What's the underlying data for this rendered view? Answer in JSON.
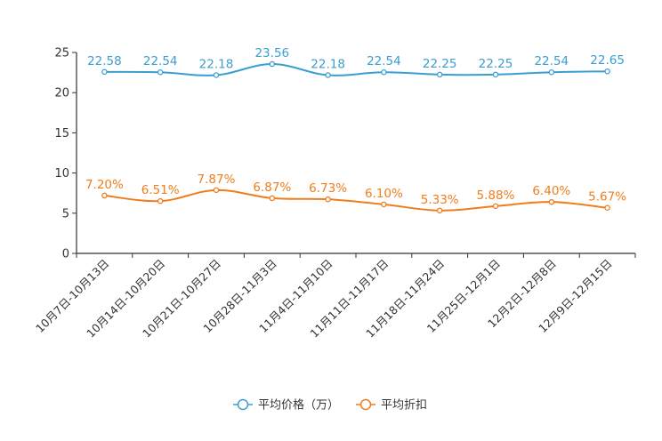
{
  "chart_data": {
    "type": "line",
    "title": "",
    "xlabel": "",
    "ylabel": "",
    "ylim": [
      0,
      25
    ],
    "yticks": [
      0,
      5,
      10,
      15,
      20,
      25
    ],
    "grid": false,
    "legend_position": "bottom-center",
    "categories": [
      "10月7日-10月13日",
      "10月14日-10月20日",
      "10月21日-10月27日",
      "10月28日-11月3日",
      "11月4日-11月10日",
      "11月11日-11月17日",
      "11月18日-11月24日",
      "11月25日-12月1日",
      "12月2日-12月8日",
      "12月9日-12月15日"
    ],
    "series": [
      {
        "name": "平均价格（万）",
        "color": "#3a9ed0",
        "values": [
          22.58,
          22.54,
          22.18,
          23.56,
          22.18,
          22.54,
          22.25,
          22.25,
          22.54,
          22.65
        ],
        "labels": [
          "22.58",
          "22.54",
          "22.18",
          "23.56",
          "22.18",
          "22.54",
          "22.25",
          "22.25",
          "22.54",
          "22.65"
        ]
      },
      {
        "name": "平均折扣",
        "color": "#f07d1c",
        "values": [
          7.2,
          6.51,
          7.87,
          6.87,
          6.73,
          6.1,
          5.33,
          5.88,
          6.4,
          5.67
        ],
        "labels": [
          "7.20%",
          "6.51%",
          "7.87%",
          "6.87%",
          "6.73%",
          "6.10%",
          "5.33%",
          "5.88%",
          "6.40%",
          "5.67%"
        ]
      }
    ]
  }
}
